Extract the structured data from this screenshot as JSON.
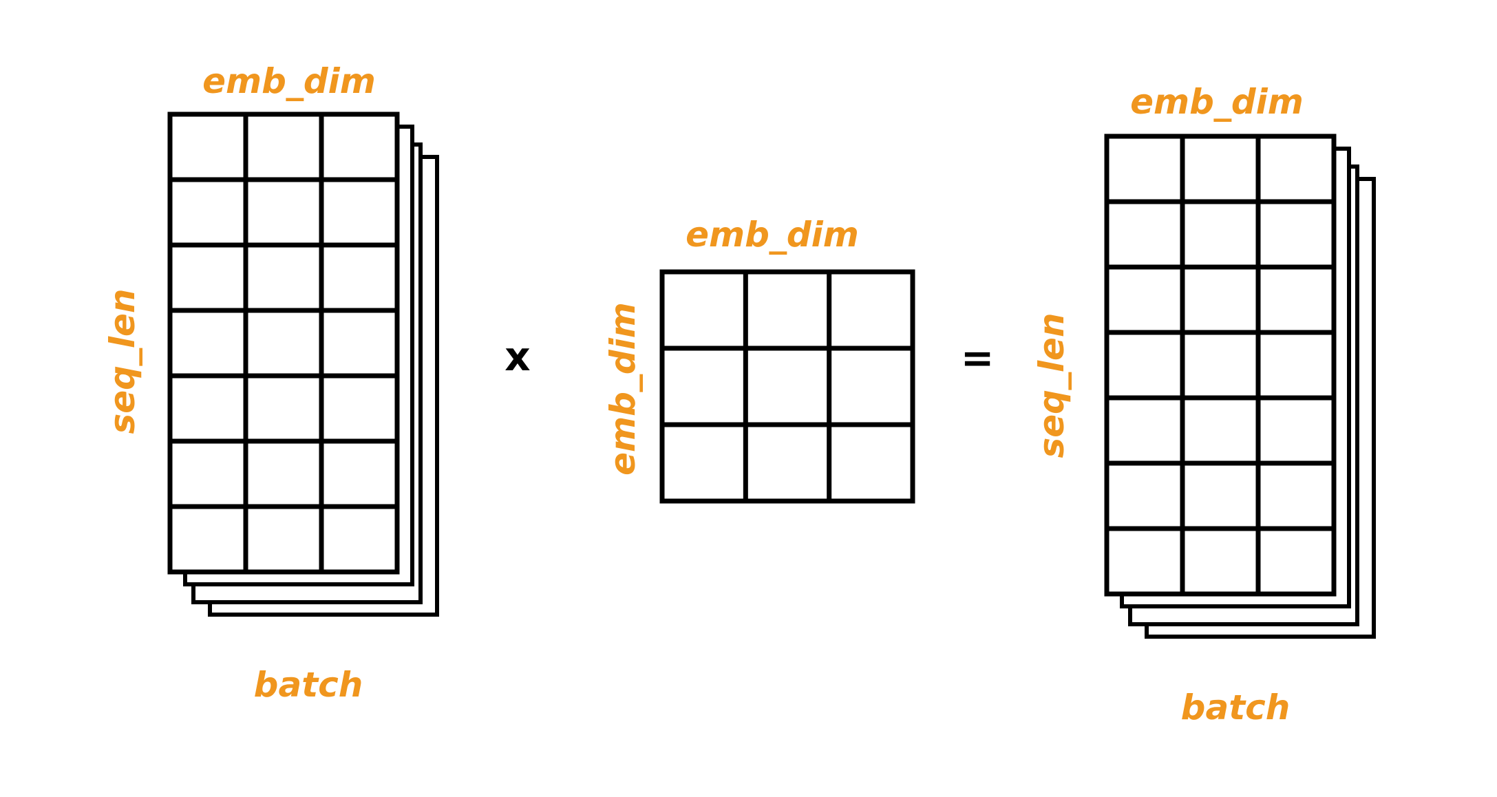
{
  "colors": {
    "label": "#F0961E",
    "stroke": "#000000",
    "background": "#FFFFFF"
  },
  "input_tensor": {
    "rows": 7,
    "cols": 3,
    "label_top": "emb_dim",
    "label_side": "seq_len",
    "label_bottom": "batch"
  },
  "weight_matrix": {
    "rows": 3,
    "cols": 3,
    "label_top": "emb_dim",
    "label_side": "emb_dim"
  },
  "output_tensor": {
    "rows": 7,
    "cols": 3,
    "label_top": "emb_dim",
    "label_side": "seq_len",
    "label_bottom": "batch"
  },
  "operators": {
    "multiply": "x",
    "equals": "="
  }
}
